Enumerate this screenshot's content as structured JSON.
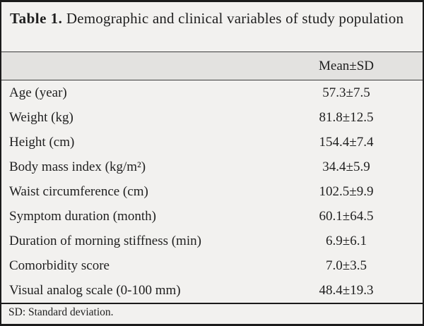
{
  "table": {
    "title_label": "Table 1.",
    "title_text": "Demographic and clinical variables of study population",
    "header": {
      "value_column": "Mean±SD"
    },
    "rows": [
      {
        "label": "Age (year)",
        "value": "57.3±7.5"
      },
      {
        "label": "Weight (kg)",
        "value": "81.8±12.5"
      },
      {
        "label": "Height (cm)",
        "value": "154.4±7.4"
      },
      {
        "label": "Body mass index (kg/m²)",
        "value": "34.4±5.9"
      },
      {
        "label": "Waist circumference (cm)",
        "value": "102.5±9.9"
      },
      {
        "label": "Symptom duration (month)",
        "value": "60.1±64.5"
      },
      {
        "label": "Duration of morning stiffness (min)",
        "value": "6.9±6.1"
      },
      {
        "label": "Comorbidity score",
        "value": "7.0±3.5"
      },
      {
        "label": "Visual analog scale (0-100 mm)",
        "value": "48.4±19.3"
      }
    ],
    "footnote": "SD: Standard deviation.",
    "colors": {
      "border": "#1b1b1b",
      "divider": "#3c3c3c",
      "header_background": "#e3e2e0",
      "body_background": "#f2f1ef",
      "text": "#1f1f1f"
    }
  }
}
